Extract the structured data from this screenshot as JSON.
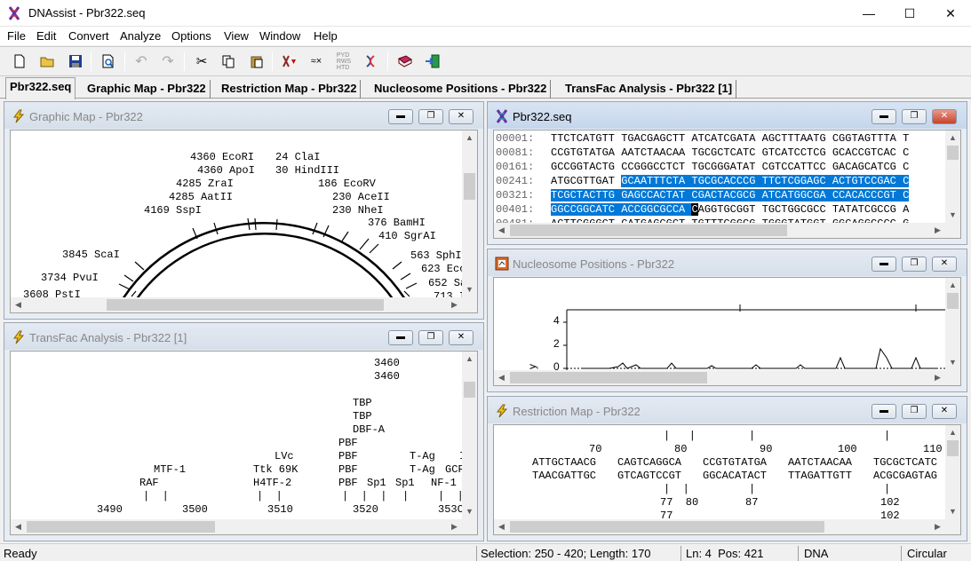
{
  "app": {
    "title": "DNAssist - Pbr322.seq"
  },
  "menu": [
    "File",
    "Edit",
    "Convert",
    "Analyze",
    "Options",
    "View",
    "Window",
    "Help"
  ],
  "tabs": [
    "Pbr322.seq",
    "Graphic Map - Pbr322",
    "Restriction Map - Pbr322",
    "Nucleosome Positions - Pbr322",
    "TransFac Analysis - Pbr322 [1]"
  ],
  "windows": {
    "graphic": {
      "title": "Graphic Map - Pbr322"
    },
    "seq": {
      "title": "Pbr322.seq"
    },
    "nucleosome": {
      "title": "Nucleosome Positions - Pbr322"
    },
    "transfac": {
      "title": "TransFac Analysis - Pbr322 [1]"
    },
    "restriction": {
      "title": "Restriction Map - Pbr322"
    }
  },
  "graphic_map": {
    "labels": [
      "4360 EcoRI",
      "24 ClaI",
      "4360 ApoI",
      "30 HindIII",
      "4285 ZraI",
      "186 EcoRV",
      "4285 AatII",
      "230 AceII",
      "4169 SspI",
      "230 NheI",
      "376 BamHI",
      "410 SgrAI",
      "3845 ScaI",
      "563 SphI",
      "623 Ecc",
      "3734 PvuI",
      "652 Sa",
      "3608 PstI",
      "713 I"
    ]
  },
  "sequence": {
    "lines": [
      {
        "num": "00001:",
        "seq": "TTCTCATGTT TGACGAGCTT ATCATCGATA AGCTTTAATG CGGTAGTTTA T"
      },
      {
        "num": "00081:",
        "seq": "CCGTGTATGA AATCTAACAA TGCGCTCATC GTCATCCTCG GCACCGTCAC C"
      },
      {
        "num": "00161:",
        "seq": "GCCGGTACTG CCGGGCCTCT TGCGGGATAT CGTCCATTCC GACAGCATCG C"
      },
      {
        "num": "00241:",
        "pre": "ATGCGTTGAT ",
        "sel": "GCAATTTCTA TGCGCACCCG TTCTCGGAGC ACTGTCCGAC C"
      },
      {
        "num": "00321:",
        "sel": "TCGCTACTTG GAGCCACTAT CGACTACGCG ATCATGGCGA CCACACCCGT C"
      },
      {
        "num": "00401:",
        "sel": "GGCCGGCATC ACCGGCGCCA ",
        "cursor": "C",
        "post": "AGGTGCGGT TGCTGGCGCC TATATCGCCG A"
      },
      {
        "num": "00481:",
        "seq": "ACTTCGGGCT CATGAGCGCT TGTTTCGGCG TGGGTATGGT GGCAGGCCCC G"
      }
    ]
  },
  "nucleosome": {
    "y_ticks": [
      "4",
      "2",
      "0"
    ],
    "axis_label": "y"
  },
  "transfac": {
    "rows": [
      {
        "t": "3460",
        "x": 409,
        "y": 6
      },
      {
        "t": "3460",
        "x": 409,
        "y": 21
      },
      {
        "t": "TBP",
        "x": 385,
        "y": 51
      },
      {
        "t": "TBP",
        "x": 385,
        "y": 66
      },
      {
        "t": "DBF-A",
        "x": 385,
        "y": 81
      },
      {
        "t": "PBF",
        "x": 369,
        "y": 96
      },
      {
        "t": "LVc",
        "x": 297,
        "y": 111
      },
      {
        "t": "PBF",
        "x": 369,
        "y": 111
      },
      {
        "t": "T-Ag",
        "x": 449,
        "y": 111
      },
      {
        "t": "I",
        "x": 505,
        "y": 111
      },
      {
        "t": "MTF-1",
        "x": 161,
        "y": 126
      },
      {
        "t": "Ttk 69K",
        "x": 273,
        "y": 126
      },
      {
        "t": "PBF",
        "x": 369,
        "y": 126
      },
      {
        "t": "T-Ag",
        "x": 449,
        "y": 126
      },
      {
        "t": "GCF",
        "x": 489,
        "y": 126
      },
      {
        "t": "RAF",
        "x": 145,
        "y": 141
      },
      {
        "t": "H4TF-2",
        "x": 273,
        "y": 141
      },
      {
        "t": "PBF",
        "x": 369,
        "y": 141
      },
      {
        "t": "Sp1",
        "x": 401,
        "y": 141
      },
      {
        "t": "Sp1",
        "x": 433,
        "y": 141
      },
      {
        "t": "NF-1",
        "x": 473,
        "y": 141
      },
      {
        "t": "|  |",
        "x": 149,
        "y": 156
      },
      {
        "t": "|  |",
        "x": 277,
        "y": 156
      },
      {
        "t": "|  |  |",
        "x": 373,
        "y": 156
      },
      {
        "t": "|",
        "x": 441,
        "y": 156
      },
      {
        "t": "|  |",
        "x": 481,
        "y": 156
      },
      {
        "t": "3490",
        "x": 97,
        "y": 171
      },
      {
        "t": "3500",
        "x": 193,
        "y": 171
      },
      {
        "t": "3510",
        "x": 289,
        "y": 171
      },
      {
        "t": "3520",
        "x": 385,
        "y": 171
      },
      {
        "t": "353C",
        "x": 481,
        "y": 171
      }
    ]
  },
  "restriction_map": {
    "rows": [
      {
        "t": "|   |",
        "x": 191,
        "y": 5
      },
      {
        "t": "|",
        "x": 287,
        "y": 5
      },
      {
        "t": "|",
        "x": 439,
        "y": 5
      },
      {
        "t": "70",
        "x": 107,
        "y": 20
      },
      {
        "t": "80",
        "x": 203,
        "y": 20
      },
      {
        "t": "90",
        "x": 299,
        "y": 20
      },
      {
        "t": "100",
        "x": 387,
        "y": 20
      },
      {
        "t": "110",
        "x": 483,
        "y": 20
      },
      {
        "t": "ATTGCTAACG",
        "x": 43,
        "y": 35
      },
      {
        "t": "CAGTCAGGCA",
        "x": 139,
        "y": 35
      },
      {
        "t": "CCGTGTATGA",
        "x": 235,
        "y": 35
      },
      {
        "t": "AATCTAACAA",
        "x": 331,
        "y": 35
      },
      {
        "t": "TGCGCTCATC",
        "x": 427,
        "y": 35
      },
      {
        "t": "TAACGATTGC",
        "x": 43,
        "y": 50
      },
      {
        "t": "GTCAGTCCGT",
        "x": 139,
        "y": 50
      },
      {
        "t": "GGCACATACT",
        "x": 235,
        "y": 50
      },
      {
        "t": "TTAGATTGTT",
        "x": 331,
        "y": 50
      },
      {
        "t": "ACGCGAGTAG",
        "x": 427,
        "y": 50
      },
      {
        "t": "|  |",
        "x": 191,
        "y": 65
      },
      {
        "t": "|",
        "x": 287,
        "y": 65
      },
      {
        "t": "|",
        "x": 439,
        "y": 65
      },
      {
        "t": "77  80",
        "x": 187,
        "y": 80
      },
      {
        "t": "87",
        "x": 283,
        "y": 80
      },
      {
        "t": "102",
        "x": 435,
        "y": 80
      },
      {
        "t": "77",
        "x": 187,
        "y": 95
      },
      {
        "t": "102",
        "x": 435,
        "y": 95
      }
    ]
  },
  "status": {
    "ready": "Ready",
    "selection": "Selection: 250 - 420; Length: 170",
    "position": "Ln: 4  Pos: 421",
    "type": "DNA",
    "topology": "Circular"
  }
}
